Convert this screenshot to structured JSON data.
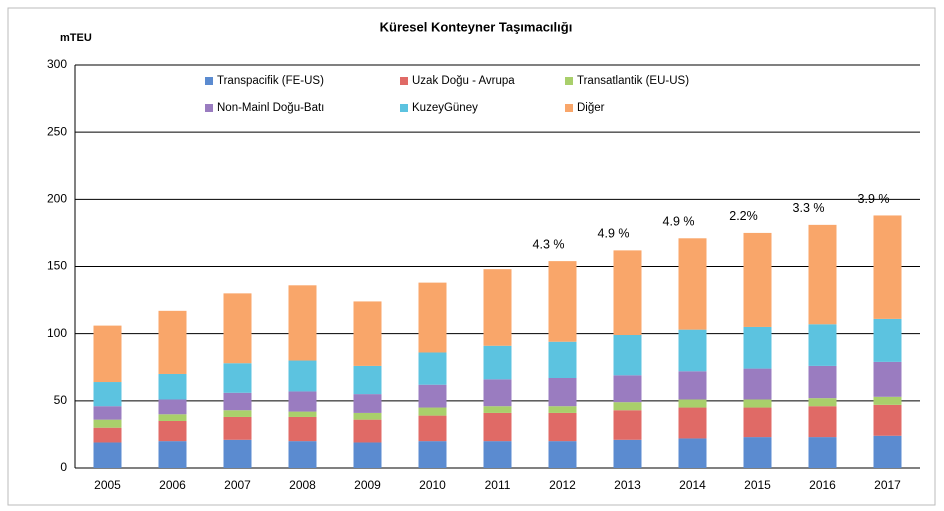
{
  "chart_data": {
    "type": "stacked_bar",
    "title": "Küresel Konteyner Taşımacılığı",
    "y_label": "mTEU",
    "categories": [
      "2005",
      "2006",
      "2007",
      "2008",
      "2009",
      "2010",
      "2011",
      "2012",
      "2013",
      "2014",
      "2015",
      "2016",
      "2017"
    ],
    "series": [
      {
        "name": "Transpacifik (FE-US)",
        "color": "#5b8bd0",
        "values": [
          19,
          20,
          21,
          20,
          19,
          20,
          20,
          20,
          21,
          22,
          23,
          23,
          24
        ]
      },
      {
        "name": "Uzak Doğu - Avrupa",
        "color": "#e06a66",
        "values": [
          11,
          15,
          17,
          18,
          17,
          19,
          21,
          21,
          22,
          23,
          22,
          23,
          23
        ]
      },
      {
        "name": "Transatlantik (EU-US)",
        "color": "#a9cf6b",
        "values": [
          6,
          5,
          5,
          4,
          5,
          6,
          5,
          5,
          6,
          6,
          6,
          6,
          6
        ]
      },
      {
        "name": "Non-Mainl Doğu-Batı",
        "color": "#9a7cc0",
        "values": [
          10,
          11,
          13,
          15,
          14,
          17,
          20,
          21,
          20,
          21,
          23,
          24,
          26
        ]
      },
      {
        "name": "KuzeyGüney",
        "color": "#5cc3e0",
        "values": [
          18,
          19,
          22,
          23,
          21,
          24,
          25,
          27,
          30,
          31,
          31,
          31,
          32
        ]
      },
      {
        "name": "Diğer",
        "color": "#f9a66a",
        "values": [
          42,
          47,
          52,
          56,
          48,
          52,
          57,
          60,
          63,
          68,
          70,
          74,
          77
        ]
      }
    ],
    "growth_labels": [
      null,
      null,
      null,
      null,
      null,
      null,
      null,
      "4.3 %",
      "4.9 %",
      "4.9 %",
      "2.2%",
      "3.3 %",
      "3.9 %"
    ],
    "ylim": [
      0,
      300
    ],
    "yticks": [
      0,
      50,
      100,
      150,
      200,
      250,
      300
    ],
    "grid": true
  }
}
